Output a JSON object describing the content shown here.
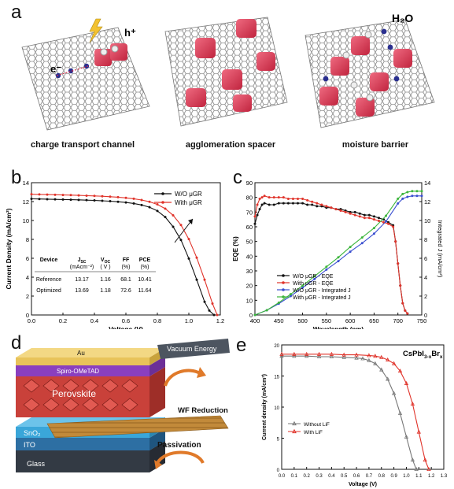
{
  "panel_labels": {
    "a": "a",
    "b": "b",
    "c": "c",
    "d": "d",
    "e": "e"
  },
  "panel_a": {
    "captions": [
      "charge transport channel",
      "agglomeration spacer",
      "moisture barrier"
    ],
    "labels": {
      "hole": "h⁺",
      "electron": "e⁻",
      "water": "H₂O"
    },
    "colors": {
      "cube": "#d62f4a",
      "sheet": "#7d7d7d",
      "electron": "#2a2f8f",
      "hole": "#e8e8e8",
      "bolt": "#f3c230"
    }
  },
  "panel_d": {
    "layers": [
      "Au",
      "Spiro-OMeTAD",
      "Perovskite",
      "SnO₂",
      "ITO",
      "Glass"
    ],
    "annotations": [
      "Vacuum Energy",
      "WF Reduction",
      "Passivation"
    ],
    "colors": {
      "au": "#e8c35a",
      "spiro": "#8a3fbf",
      "perovskite": "#c9413a",
      "sno2": "#3aa6d9",
      "ito": "#2d6fa3",
      "glass": "#333a44",
      "sheet": "#c28a3a"
    }
  },
  "chart_data": [
    {
      "type": "line",
      "panel": "b",
      "xlabel": "Voltage (V)",
      "ylabel": "Current Density (mA/cm²)",
      "xlim": [
        0.0,
        1.2
      ],
      "ylim": [
        0,
        15
      ],
      "xticks": [
        "0.0",
        "0.2",
        "0.4",
        "0.6",
        "0.8",
        "1.0",
        "1.2"
      ],
      "yticks": [
        "0",
        "2",
        "4",
        "6",
        "8",
        "10",
        "12",
        "14"
      ],
      "legend_position": "top-right",
      "series": [
        {
          "name": "W/O μGR",
          "color": "#111111",
          "x": [
            0,
            0.05,
            0.1,
            0.15,
            0.2,
            0.25,
            0.3,
            0.35,
            0.4,
            0.45,
            0.5,
            0.55,
            0.6,
            0.65,
            0.7,
            0.75,
            0.8,
            0.85,
            0.9,
            0.95,
            1.0,
            1.05,
            1.1,
            1.13,
            1.16
          ],
          "y": [
            13.17,
            13.15,
            13.13,
            13.11,
            13.09,
            13.07,
            13.05,
            13.02,
            12.99,
            12.95,
            12.9,
            12.84,
            12.76,
            12.64,
            12.47,
            12.22,
            11.8,
            11.1,
            10.0,
            8.5,
            6.4,
            4.0,
            1.5,
            0.5,
            0
          ]
        },
        {
          "name": "With μGR",
          "color": "#e0332a",
          "x": [
            0,
            0.05,
            0.1,
            0.15,
            0.2,
            0.25,
            0.3,
            0.35,
            0.4,
            0.45,
            0.5,
            0.55,
            0.6,
            0.65,
            0.7,
            0.75,
            0.8,
            0.85,
            0.9,
            0.95,
            1.0,
            1.05,
            1.1,
            1.15,
            1.18
          ],
          "y": [
            13.69,
            13.67,
            13.65,
            13.63,
            13.61,
            13.59,
            13.56,
            13.53,
            13.5,
            13.46,
            13.41,
            13.36,
            13.28,
            13.18,
            13.04,
            12.84,
            12.54,
            12.05,
            11.3,
            10.2,
            8.6,
            6.5,
            4.0,
            1.3,
            0
          ]
        }
      ],
      "annotation_table": {
        "headers": [
          "Device",
          "J_sc (mAcm⁻²)",
          "V_oc (V)",
          "FF (%)",
          "PCE (%)"
        ],
        "header_lines": [
          [
            "Device",
            ""
          ],
          [
            "J",
            "(mAcm⁻²)"
          ],
          [
            "V",
            "( V )"
          ],
          [
            "FF",
            "(%)"
          ],
          [
            "PCE",
            "(%)"
          ]
        ],
        "header_subs": [
          "",
          "SC",
          "OC",
          "",
          ""
        ],
        "rows": [
          [
            "Reference",
            "13.17",
            "1.16",
            "68.1",
            "10.41"
          ],
          [
            "Optimized",
            "13.69",
            "1.18",
            "72.6",
            "11.64"
          ]
        ]
      }
    },
    {
      "type": "line",
      "panel": "c",
      "xlabel": "Wavelength (nm)",
      "ylabel": "EQE (%)",
      "y2label": "Integrated J (mA/cm²)",
      "xlim": [
        400,
        750
      ],
      "ylim": [
        0,
        90
      ],
      "y2lim": [
        0,
        14
      ],
      "xticks": [
        "400",
        "450",
        "500",
        "550",
        "600",
        "650",
        "700",
        "750"
      ],
      "yticks": [
        "0",
        "10",
        "20",
        "30",
        "40",
        "50",
        "60",
        "70",
        "80",
        "90"
      ],
      "y2ticks": [
        "0",
        "2",
        "4",
        "6",
        "8",
        "10",
        "12",
        "14"
      ],
      "legend_position": "bottom-left",
      "series": [
        {
          "name": "W/O μGR - EQE",
          "color": "#111111",
          "axis": "left",
          "x": [
            400,
            405,
            410,
            415,
            420,
            430,
            440,
            450,
            460,
            470,
            480,
            490,
            500,
            510,
            520,
            530,
            540,
            550,
            560,
            570,
            580,
            590,
            600,
            610,
            620,
            630,
            640,
            650,
            660,
            670,
            680,
            690,
            695,
            700,
            705,
            710,
            715,
            720
          ],
          "y": [
            62,
            68,
            72,
            75,
            76,
            75,
            75,
            76,
            76,
            76,
            76,
            76,
            76,
            75,
            75,
            74,
            74,
            73,
            73,
            72,
            72,
            71,
            70,
            70,
            69,
            68,
            68,
            67,
            66,
            65,
            63,
            61,
            50,
            35,
            20,
            8,
            3,
            1
          ]
        },
        {
          "name": "With μGR - EQE",
          "color": "#e0332a",
          "axis": "left",
          "x": [
            400,
            405,
            410,
            415,
            420,
            430,
            440,
            450,
            460,
            470,
            480,
            490,
            500,
            510,
            520,
            530,
            540,
            550,
            560,
            570,
            580,
            590,
            600,
            610,
            620,
            630,
            640,
            650,
            660,
            670,
            680,
            690,
            695,
            700,
            705,
            710,
            715,
            720
          ],
          "y": [
            67,
            75,
            79,
            80,
            81,
            80,
            80,
            80,
            80,
            79,
            79,
            79,
            79,
            78,
            77,
            76,
            75,
            74,
            73,
            72,
            71,
            70,
            69,
            68,
            67,
            66,
            66,
            65,
            64,
            63,
            62,
            60,
            50,
            35,
            20,
            8,
            3,
            1
          ]
        },
        {
          "name": "W/O μGR - Integrated J",
          "color": "#3a4fd0",
          "axis": "right",
          "x": [
            400,
            425,
            450,
            475,
            500,
            525,
            550,
            575,
            600,
            625,
            650,
            675,
            700,
            710,
            720,
            730,
            740,
            750
          ],
          "y": [
            0,
            0.5,
            1.2,
            2.0,
            2.9,
            3.8,
            4.8,
            5.7,
            6.7,
            7.6,
            8.6,
            9.9,
            11.8,
            12.3,
            12.5,
            12.6,
            12.6,
            12.6
          ]
        },
        {
          "name": "With μGR - Integrated J",
          "color": "#3cb53c",
          "axis": "right",
          "x": [
            400,
            425,
            450,
            475,
            500,
            525,
            550,
            575,
            600,
            625,
            650,
            675,
            700,
            710,
            720,
            730,
            740,
            750
          ],
          "y": [
            0,
            0.5,
            1.3,
            2.2,
            3.1,
            4.1,
            5.1,
            6.1,
            7.2,
            8.2,
            9.2,
            10.5,
            12.3,
            12.8,
            13.0,
            13.1,
            13.1,
            13.1
          ]
        }
      ]
    },
    {
      "type": "line",
      "panel": "e",
      "title": "CsPbI3-xBrx",
      "title_parts": {
        "base": "CsPbI",
        "sub1": "3-x",
        "mid": "Br",
        "sub2": "x"
      },
      "xlabel": "Voltage (V)",
      "ylabel": "Current density (mA/cm²)",
      "xlim": [
        0.0,
        1.3
      ],
      "ylim": [
        0,
        20
      ],
      "xticks": [
        "0.0",
        "0.1",
        "0.2",
        "0.3",
        "0.4",
        "0.5",
        "0.6",
        "0.7",
        "0.8",
        "0.9",
        "1.0",
        "1.1",
        "1.2",
        "1.3"
      ],
      "yticks": [
        "0",
        "5",
        "10",
        "15",
        "20"
      ],
      "legend_position": "lower-left",
      "series": [
        {
          "name": "Without LiF",
          "color": "#777777",
          "x": [
            0,
            0.1,
            0.2,
            0.3,
            0.4,
            0.5,
            0.6,
            0.65,
            0.7,
            0.75,
            0.8,
            0.85,
            0.9,
            0.95,
            1.0,
            1.05,
            1.08
          ],
          "y": [
            18.2,
            18.2,
            18.2,
            18.1,
            18.1,
            18.0,
            17.9,
            17.8,
            17.5,
            17.0,
            16.0,
            14.5,
            12.2,
            9.0,
            5.2,
            1.5,
            0
          ]
        },
        {
          "name": "With LiF",
          "color": "#e0332a",
          "x": [
            0,
            0.1,
            0.2,
            0.3,
            0.4,
            0.5,
            0.6,
            0.7,
            0.75,
            0.8,
            0.85,
            0.9,
            0.95,
            1.0,
            1.05,
            1.1,
            1.15,
            1.18
          ],
          "y": [
            18.5,
            18.5,
            18.5,
            18.5,
            18.5,
            18.4,
            18.4,
            18.3,
            18.2,
            18.0,
            17.6,
            17.0,
            15.8,
            13.8,
            10.5,
            6.0,
            1.5,
            0
          ]
        }
      ]
    }
  ]
}
